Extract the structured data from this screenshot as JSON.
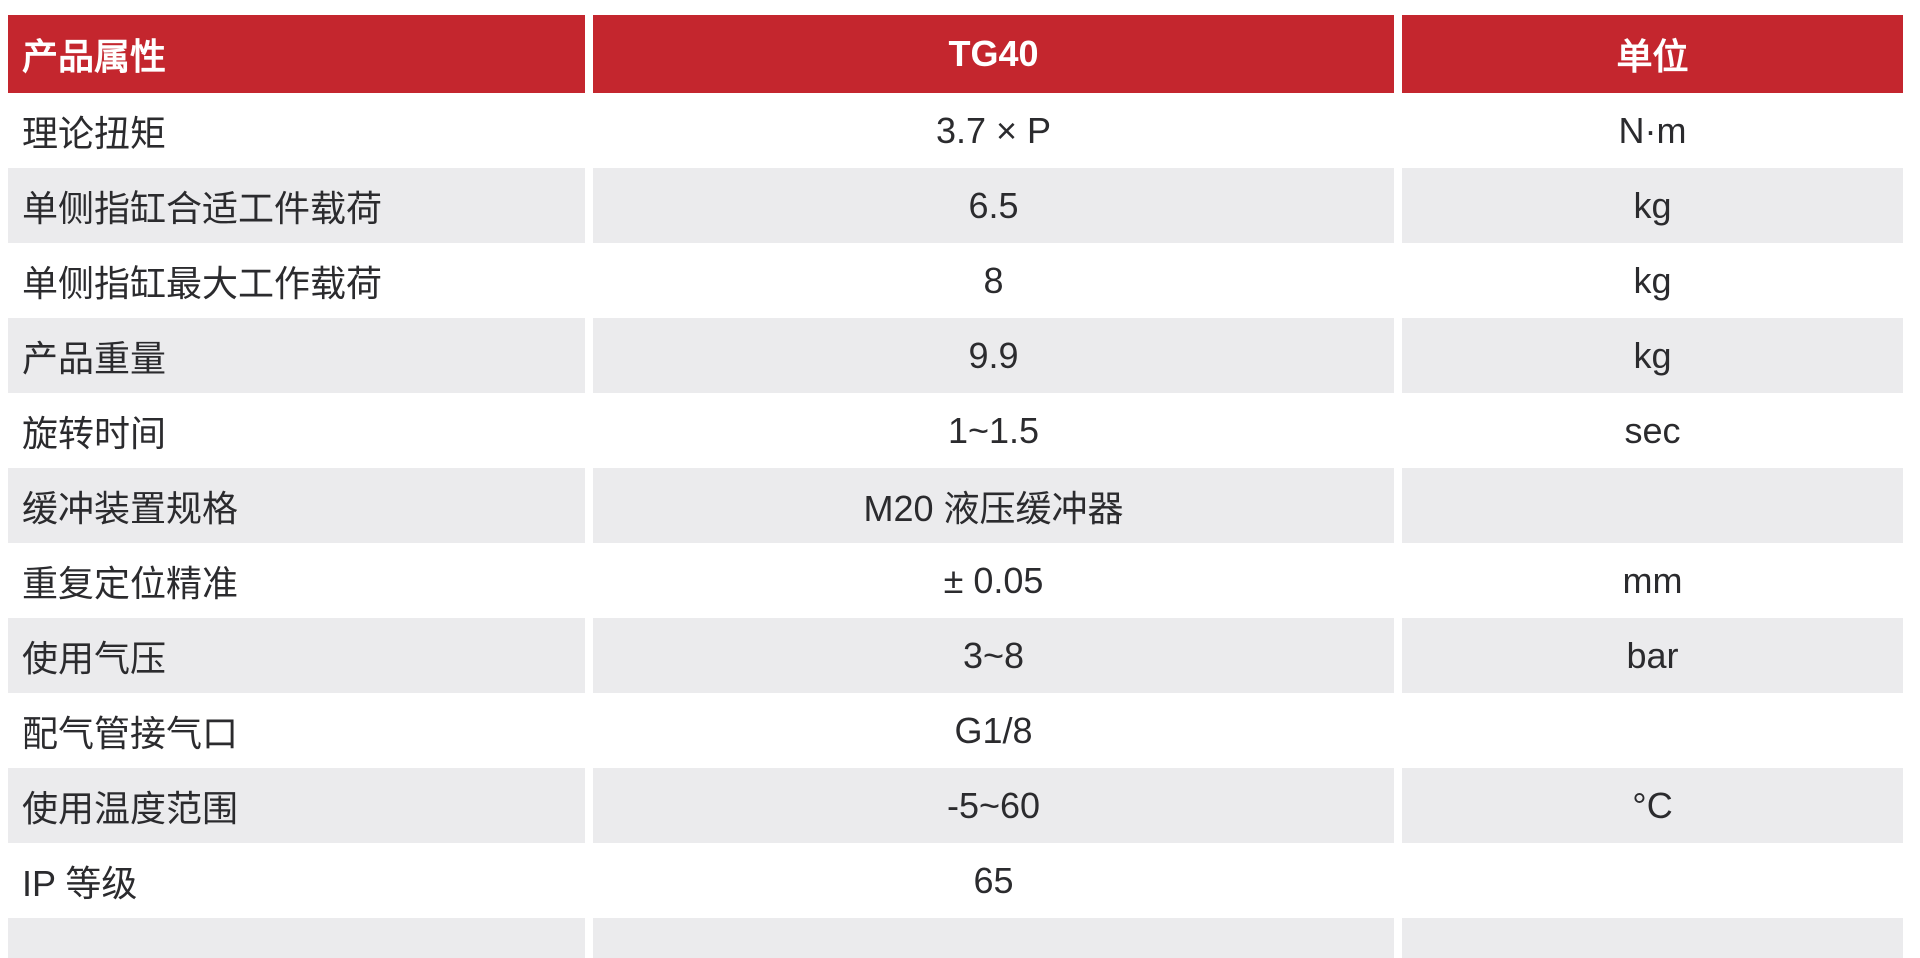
{
  "table": {
    "header": {
      "property": "产品属性",
      "model": "TG40",
      "unit": "单位"
    },
    "rows": [
      {
        "label": "理论扭矩",
        "value": "3.7 × P",
        "unit": "N·m"
      },
      {
        "label": "单侧指缸合适工件载荷",
        "value": "6.5",
        "unit": "kg"
      },
      {
        "label": "单侧指缸最大工作载荷",
        "value": "8",
        "unit": "kg"
      },
      {
        "label": "产品重量",
        "value": "9.9",
        "unit": "kg"
      },
      {
        "label": "旋转时间",
        "value": "1~1.5",
        "unit": "sec"
      },
      {
        "label": "缓冲装置规格",
        "value": "M20 液压缓冲器",
        "unit": ""
      },
      {
        "label": "重复定位精准",
        "value": "± 0.05",
        "unit": "mm"
      },
      {
        "label": "使用气压",
        "value": "3~8",
        "unit": "bar"
      },
      {
        "label": "配气管接气口",
        "value": "G1/8",
        "unit": ""
      },
      {
        "label": "使用温度范围",
        "value": "-5~60",
        "unit": "°C"
      },
      {
        "label": "IP 等级",
        "value": "65",
        "unit": ""
      }
    ]
  },
  "colors": {
    "header_bg": "#C4262E",
    "header_text": "#FFFFFF",
    "row_alt_bg": "#EBEBED",
    "text": "#2B2B2E"
  }
}
